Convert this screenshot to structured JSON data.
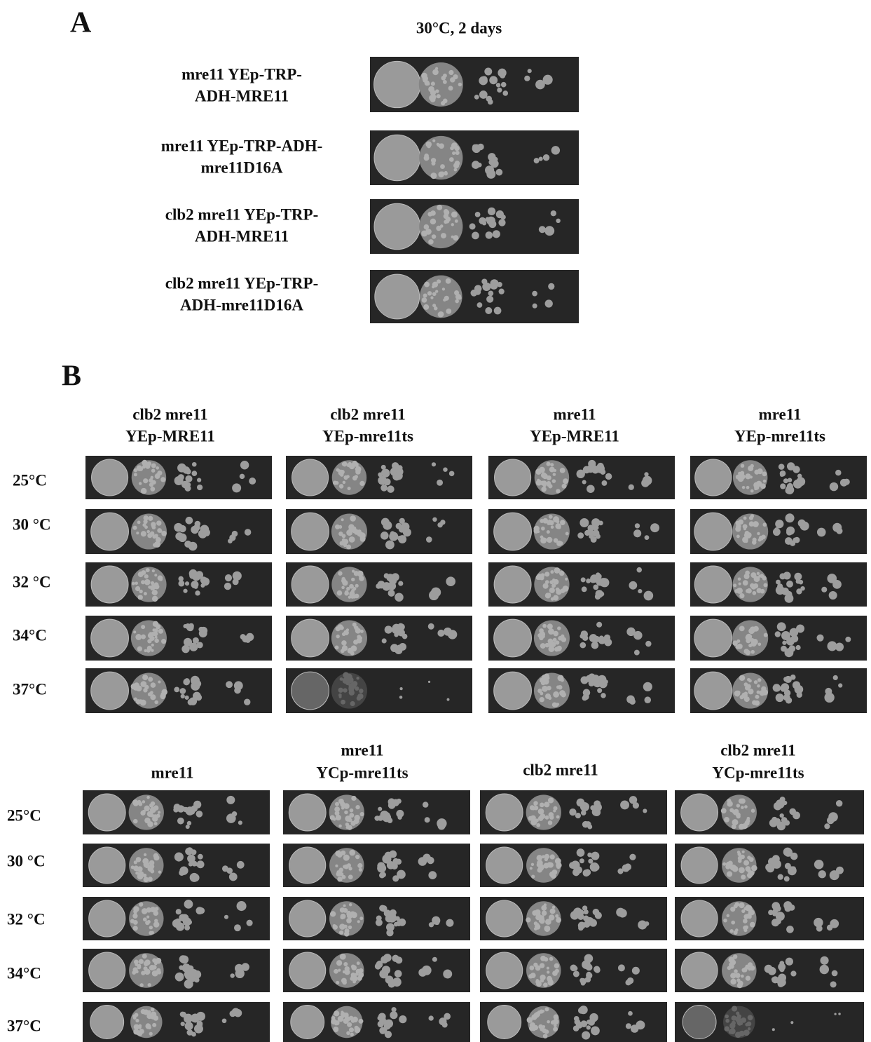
{
  "panel_a": {
    "label": "A",
    "condition": "30°C, 2 days",
    "rows": [
      [
        "mre11 YEp-TRP-",
        "ADH-MRE11"
      ],
      [
        "mre11 YEp-TRP-ADH-",
        "mre11D16A"
      ],
      [
        "clb2 mre11 YEp-TRP-",
        "ADH-MRE11"
      ],
      [
        "clb2 mre11 YEp-TRP-",
        "ADH-mre11D16A"
      ]
    ]
  },
  "panel_b": {
    "label": "B",
    "blocks": [
      {
        "strains": [
          [
            "clb2 mre11",
            "YEp-MRE11"
          ],
          [
            "clb2 mre11",
            "YEp-mre11ts"
          ],
          [
            "mre11",
            "YEp-MRE11"
          ],
          [
            "mre11",
            "YEp-mre11ts"
          ]
        ],
        "temperatures": [
          "25°C",
          "30 °C",
          "32 °C",
          "34°C",
          "37°C"
        ]
      },
      {
        "strains": [
          [
            "mre11"
          ],
          [
            "mre11",
            "YCp-mre11ts"
          ],
          [
            "clb2 mre11"
          ],
          [
            "clb2 mre11",
            "YCp-mre11ts"
          ]
        ],
        "temperatures": [
          "25°C",
          "30 °C",
          "32 °C",
          "34°C",
          "37°C"
        ]
      }
    ]
  }
}
